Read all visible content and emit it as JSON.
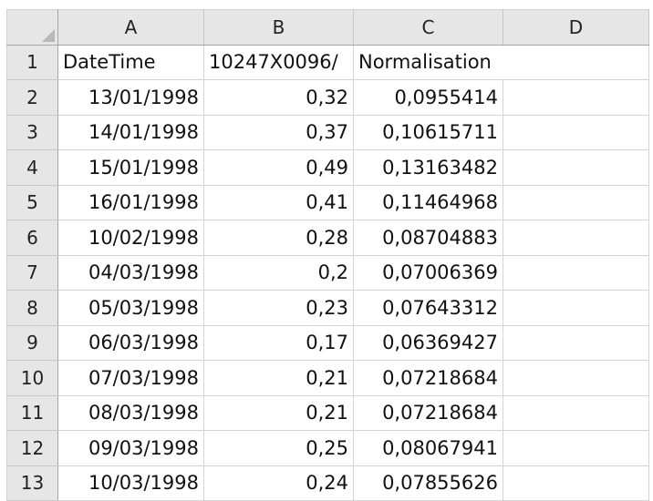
{
  "columns": [
    "A",
    "B",
    "C",
    "D"
  ],
  "header_row": {
    "row_number": "1",
    "cells": [
      "DateTime",
      "10247X0096/",
      "Normalisation",
      ""
    ]
  },
  "rows": [
    {
      "n": "2",
      "a": "13/01/1998",
      "b": "0,32",
      "c": "0,0955414",
      "d": ""
    },
    {
      "n": "3",
      "a": "14/01/1998",
      "b": "0,37",
      "c": "0,10615711",
      "d": ""
    },
    {
      "n": "4",
      "a": "15/01/1998",
      "b": "0,49",
      "c": "0,13163482",
      "d": ""
    },
    {
      "n": "5",
      "a": "16/01/1998",
      "b": "0,41",
      "c": "0,11464968",
      "d": ""
    },
    {
      "n": "6",
      "a": "10/02/1998",
      "b": "0,28",
      "c": "0,08704883",
      "d": ""
    },
    {
      "n": "7",
      "a": "04/03/1998",
      "b": "0,2",
      "c": "0,07006369",
      "d": ""
    },
    {
      "n": "8",
      "a": "05/03/1998",
      "b": "0,23",
      "c": "0,07643312",
      "d": ""
    },
    {
      "n": "9",
      "a": "06/03/1998",
      "b": "0,17",
      "c": "0,06369427",
      "d": ""
    },
    {
      "n": "10",
      "a": "07/03/1998",
      "b": "0,21",
      "c": "0,07218684",
      "d": ""
    },
    {
      "n": "11",
      "a": "08/03/1998",
      "b": "0,21",
      "c": "0,07218684",
      "d": ""
    },
    {
      "n": "12",
      "a": "09/03/1998",
      "b": "0,25",
      "c": "0,08067941",
      "d": ""
    },
    {
      "n": "13",
      "a": "10/03/1998",
      "b": "0,24",
      "c": "0,07855626",
      "d": ""
    }
  ]
}
